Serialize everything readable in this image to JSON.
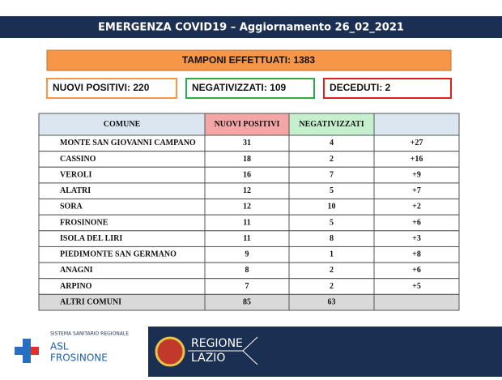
{
  "header": {
    "title": "EMERGENZA COVID19 – Aggiornamento 26_02_2021"
  },
  "summary": {
    "tamponi": "TAMPONI EFFETTUATI: 1383",
    "positivi": "NUOVI POSITIVI: 220",
    "negativizzati": "NEGATIVIZZATI: 109",
    "deceduti": "DECEDUTI: 2"
  },
  "table": {
    "header": [
      "COMUNE",
      "NUOVI POSITIVI",
      "NEGATIVIZZATI"
    ],
    "rows": [
      [
        "MONTE SAN GIOVANNI CAMPANO",
        "31",
        "4",
        "+27"
      ],
      [
        "CASSINO",
        "18",
        "2",
        "+16"
      ],
      [
        "VEROLI",
        "16",
        "7",
        "+9"
      ],
      [
        "ALATRI",
        "12",
        "5",
        "+7"
      ],
      [
        "SORA",
        "12",
        "10",
        "+2"
      ],
      [
        "FROSINONE",
        "11",
        "5",
        "+6"
      ],
      [
        "ISOLA DEL LIRI",
        "11",
        "8",
        "+3"
      ],
      [
        "PIEDIMONTE SAN GERMANO",
        "9",
        "1",
        "+8"
      ],
      [
        "ANAGNI",
        "8",
        "2",
        "+6"
      ],
      [
        "ARPINO",
        "7",
        "2",
        "+5"
      ],
      [
        "ALTRI COMUNI",
        "85",
        "63"
      ]
    ]
  },
  "footer": {
    "asl_small": "SISTEMA SANITARIO REGIONALE",
    "asl_line1": "ASL",
    "asl_line2": "FROSINONE",
    "region_line1": "REGIONE",
    "region_line2": "LAZIO"
  }
}
